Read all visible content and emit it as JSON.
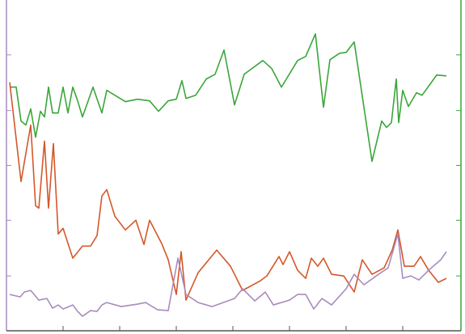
{
  "chart_data": {
    "type": "line",
    "xlim": [
      0,
      562
    ],
    "xticks": [
      70,
      140,
      210,
      280,
      350,
      420,
      490
    ],
    "ylim": [
      0,
      410
    ],
    "yticks": [
      68,
      137,
      205,
      273,
      342
    ],
    "y2lim": [
      0,
      410
    ],
    "y2ticks": [
      68,
      137,
      205,
      273,
      342
    ],
    "y_axis_color": "#a98bbd",
    "y2_axis_color": "#3aa63a",
    "x_axis_color": "#555555",
    "series": [
      {
        "color": "#3aa63a",
        "axis": "y2",
        "x": [
          4,
          12,
          18,
          24,
          30,
          36,
          42,
          47,
          52,
          57,
          64,
          70,
          76,
          82,
          88,
          94,
          107,
          118,
          124,
          147,
          162,
          177,
          188,
          200,
          210,
          217,
          222,
          234,
          247,
          258,
          269,
          282,
          294,
          317,
          328,
          340,
          360,
          370,
          382,
          392,
          400,
          412,
          420,
          430,
          452,
          464,
          470,
          476,
          482,
          485,
          490,
          497,
          507,
          514,
          532,
          544
        ],
        "values": [
          302,
          302,
          260,
          255,
          275,
          240,
          272,
          265,
          302,
          270,
          270,
          302,
          270,
          302,
          285,
          265,
          302,
          270,
          298,
          284,
          287,
          285,
          272,
          285,
          287,
          310,
          288,
          292,
          312,
          318,
          348,
          280,
          318,
          335,
          325,
          302,
          335,
          340,
          368,
          277,
          336,
          344,
          345,
          358,
          210,
          260,
          252,
          258,
          312,
          258,
          298,
          278,
          295,
          292,
          317,
          316
        ]
      },
      {
        "color": "#d4572a",
        "x": [
          4,
          18,
          30,
          36,
          40,
          47,
          52,
          58,
          64,
          70,
          82,
          94,
          104,
          112,
          118,
          124,
          134,
          147,
          160,
          170,
          177,
          192,
          200,
          210,
          216,
          222,
          237,
          260,
          277,
          292,
          314,
          322,
          337,
          342,
          350,
          360,
          370,
          377,
          385,
          392,
          402,
          417,
          430,
          440,
          452,
          467,
          477,
          484,
          492,
          504,
          512,
          522,
          534,
          544
        ],
        "values": [
          308,
          185,
          255,
          155,
          152,
          235,
          152,
          232,
          120,
          127,
          90,
          105,
          105,
          118,
          167,
          175,
          142,
          125,
          137,
          107,
          137,
          108,
          88,
          45,
          98,
          38,
          72,
          100,
          80,
          50,
          62,
          68,
          92,
          82,
          98,
          75,
          65,
          90,
          80,
          90,
          70,
          68,
          48,
          88,
          70,
          78,
          100,
          125,
          80,
          80,
          92,
          75,
          60,
          65
        ]
      },
      {
        "color": "#a98bbd",
        "x": [
          4,
          17,
          22,
          30,
          40,
          50,
          57,
          64,
          70,
          82,
          88,
          94,
          104,
          112,
          118,
          124,
          142,
          162,
          172,
          187,
          200,
          212,
          222,
          237,
          254,
          282,
          292,
          307,
          320,
          330,
          350,
          360,
          370,
          380,
          390,
          402,
          420,
          430,
          442,
          460,
          472,
          484,
          490,
          500,
          510,
          522,
          537,
          544
        ],
        "values": [
          45,
          42,
          48,
          50,
          38,
          40,
          28,
          32,
          27,
          32,
          24,
          18,
          25,
          24,
          32,
          35,
          30,
          33,
          35,
          26,
          25,
          90,
          45,
          35,
          30,
          40,
          52,
          37,
          48,
          32,
          38,
          45,
          45,
          27,
          40,
          32,
          52,
          70,
          57,
          70,
          78,
          120,
          65,
          68,
          63,
          75,
          88,
          98
        ]
      }
    ]
  }
}
